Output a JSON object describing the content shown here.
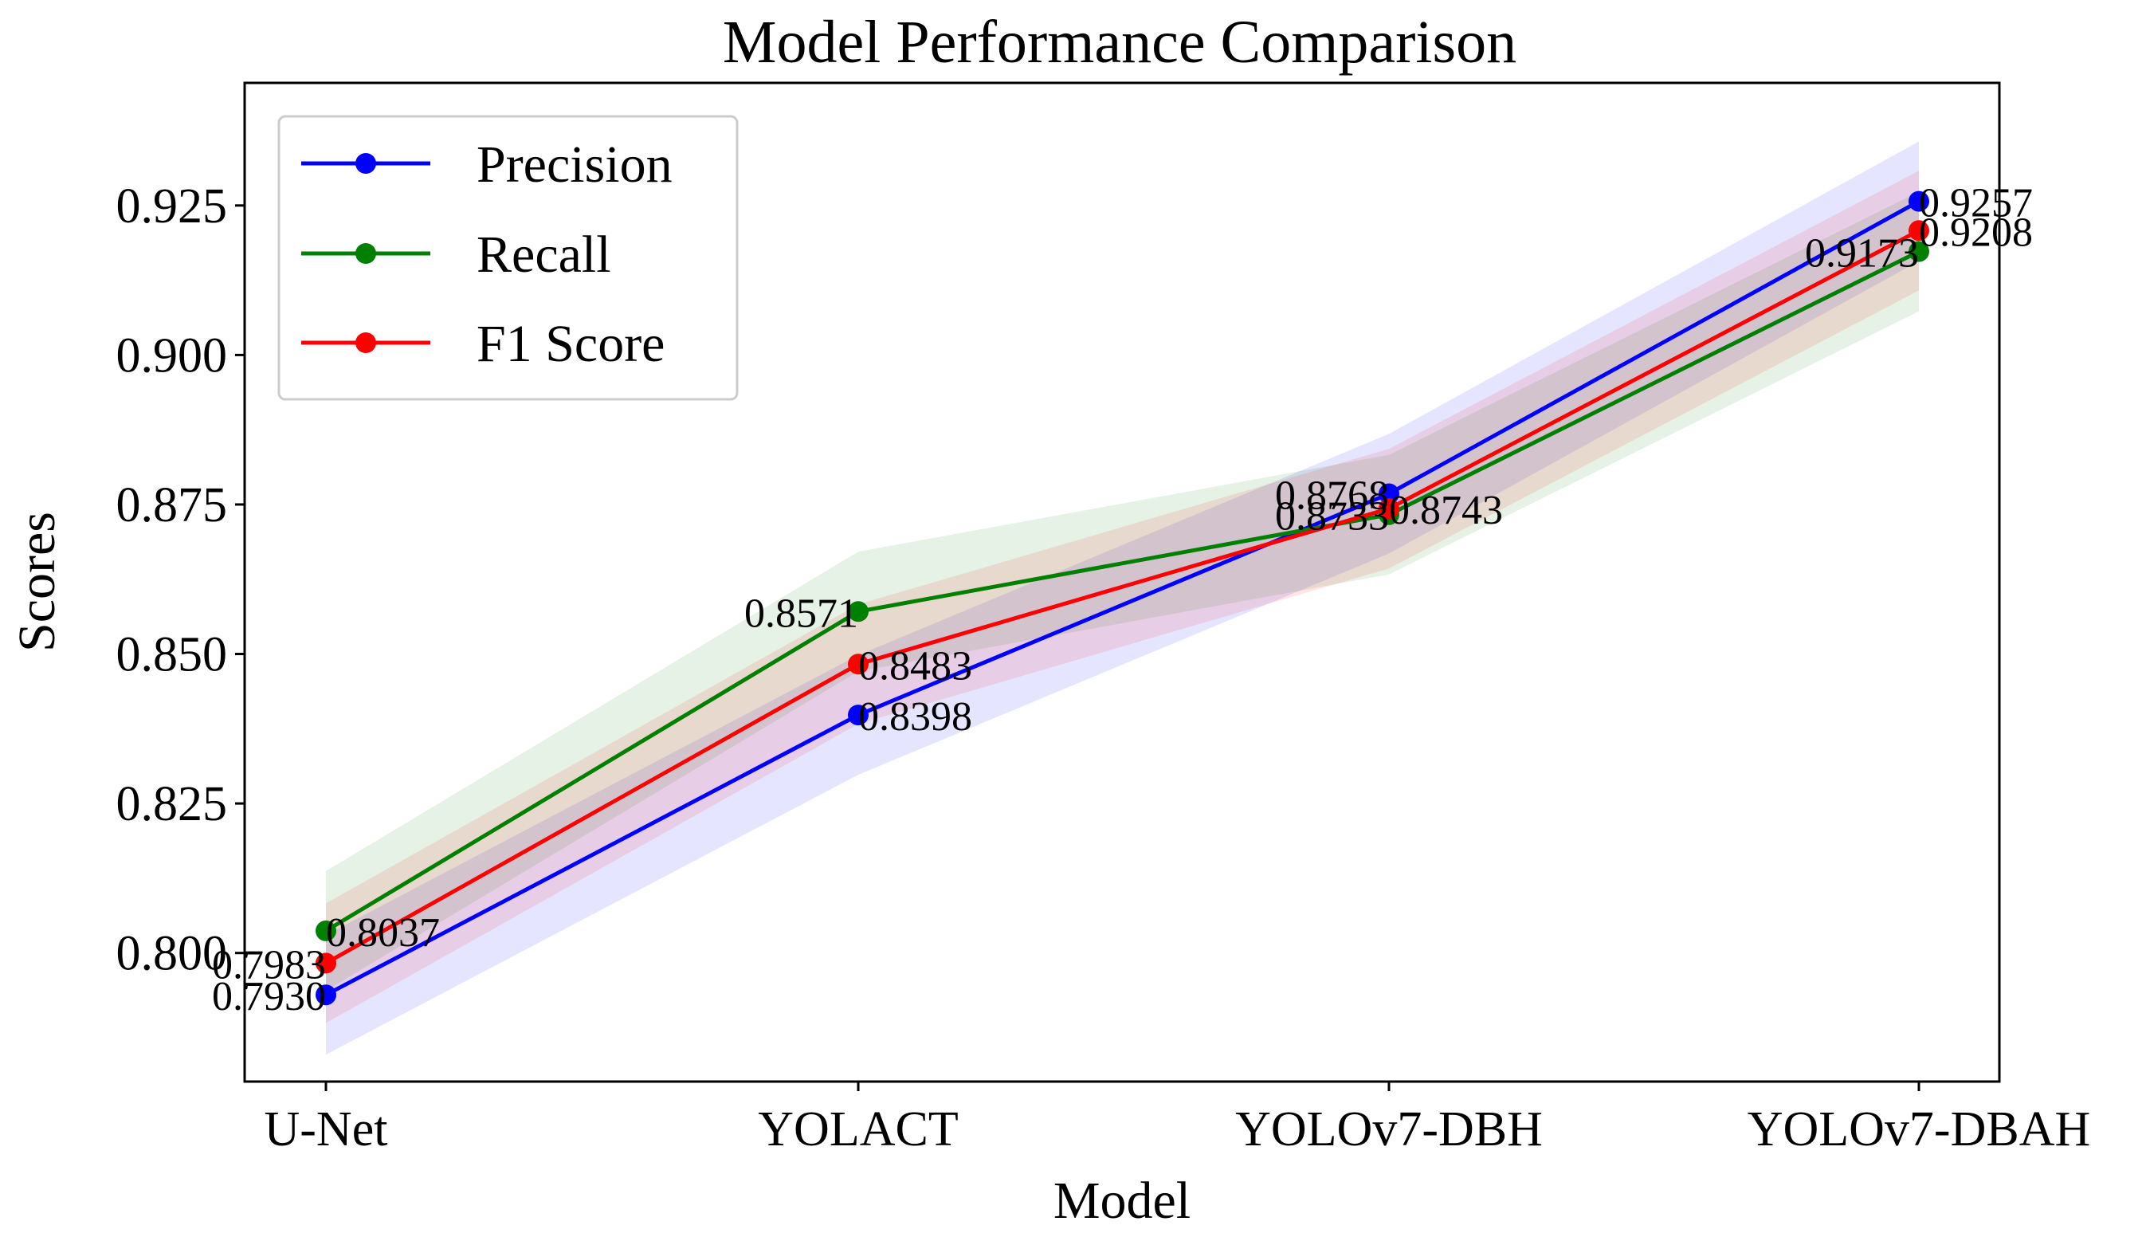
{
  "chart_data": {
    "type": "line",
    "title": "Model Performance Comparison",
    "xlabel": "Model",
    "ylabel": "Scores",
    "categories": [
      "U-Net",
      "YOLACT",
      "YOLOv7-DBH",
      "YOLOv7-DBAH"
    ],
    "ylim": [
      0.7785,
      0.9455
    ],
    "yticks": [
      0.8,
      0.825,
      0.85,
      0.875,
      0.9,
      0.925
    ],
    "ytick_labels": [
      "0.800",
      "0.825",
      "0.850",
      "0.875",
      "0.900",
      "0.925"
    ],
    "grid": false,
    "legend_position": "top-left",
    "band_halfwidth": 0.01,
    "series": [
      {
        "name": "Precision",
        "color": "#0000ff",
        "values": [
          0.793,
          0.8398,
          0.8768,
          0.9257
        ],
        "labels": [
          "0.7930",
          "0.8398",
          "0.8768",
          "0.9257"
        ]
      },
      {
        "name": "Recall",
        "color": "#008000",
        "values": [
          0.8037,
          0.8571,
          0.8733,
          0.9173
        ],
        "labels": [
          "0.8037",
          "0.8571",
          "0.8733",
          "0.9173"
        ]
      },
      {
        "name": "F1 Score",
        "color": "#ff0000",
        "values": [
          0.7983,
          0.8483,
          0.8743,
          0.9208
        ],
        "labels": [
          "0.7983",
          "0.8483",
          "0.8743",
          "0.9208"
        ]
      }
    ]
  }
}
